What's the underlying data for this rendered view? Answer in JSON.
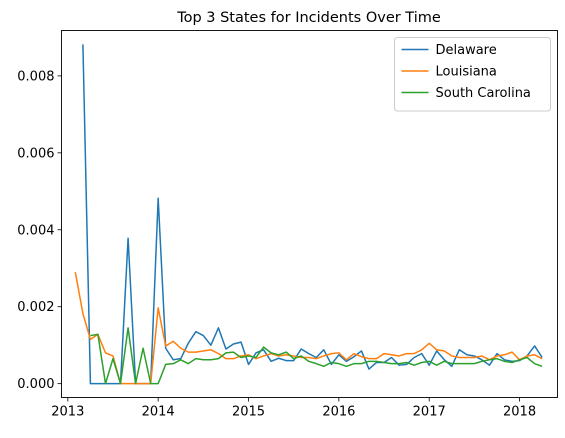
{
  "chart_data": {
    "type": "line",
    "title": "Top 3 States for Incidents Over Time",
    "xlabel": "",
    "ylabel": "",
    "x_unit": "year",
    "xlim": [
      2012.93,
      2018.42
    ],
    "ylim": [
      -0.00036,
      0.00918
    ],
    "xticks": [
      2013,
      2014,
      2015,
      2016,
      2017,
      2018
    ],
    "xtick_labels": [
      "2013",
      "2014",
      "2015",
      "2016",
      "2017",
      "2018"
    ],
    "yticks": [
      0.0,
      0.002,
      0.004,
      0.006,
      0.008
    ],
    "ytick_labels": [
      "0.000",
      "0.002",
      "0.004",
      "0.006",
      "0.008"
    ],
    "grid": false,
    "legend_position": "top-right",
    "x": [
      2013.083,
      2013.167,
      2013.25,
      2013.333,
      2013.417,
      2013.5,
      2013.583,
      2013.667,
      2013.75,
      2013.833,
      2013.917,
      2014.0,
      2014.083,
      2014.167,
      2014.25,
      2014.333,
      2014.417,
      2014.5,
      2014.583,
      2014.667,
      2014.75,
      2014.833,
      2014.917,
      2015.0,
      2015.083,
      2015.167,
      2015.25,
      2015.333,
      2015.417,
      2015.5,
      2015.583,
      2015.667,
      2015.75,
      2015.833,
      2015.917,
      2016.0,
      2016.083,
      2016.167,
      2016.25,
      2016.333,
      2016.417,
      2016.5,
      2016.583,
      2016.667,
      2016.75,
      2016.833,
      2016.917,
      2017.0,
      2017.083,
      2017.167,
      2017.25,
      2017.333,
      2017.417,
      2017.5,
      2017.583,
      2017.667,
      2017.75,
      2017.833,
      2017.917,
      2018.0,
      2018.083,
      2018.167,
      2018.25
    ],
    "series": [
      {
        "name": "Delaware",
        "color": "#1f77b4",
        "values": [
          null,
          0.00882,
          0.0,
          0.0,
          0.0,
          0.0,
          0.0,
          0.00378,
          0.0,
          0.0,
          0.0,
          0.00482,
          0.00092,
          0.00062,
          0.00065,
          0.00105,
          0.00135,
          0.00125,
          0.001,
          0.00145,
          0.0009,
          0.00103,
          0.00108,
          0.0005,
          0.0008,
          0.00088,
          0.00058,
          0.00066,
          0.0006,
          0.0006,
          0.0009,
          0.00078,
          0.00068,
          0.00088,
          0.0005,
          0.00075,
          0.00058,
          0.0007,
          0.00085,
          0.00038,
          0.00055,
          0.00055,
          0.00068,
          0.00048,
          0.0005,
          0.00068,
          0.00078,
          0.00048,
          0.00085,
          0.00062,
          0.00045,
          0.00088,
          0.00075,
          0.00072,
          0.00062,
          0.00048,
          0.00078,
          0.00062,
          0.00058,
          0.0006,
          0.00072,
          0.00098,
          0.00068
        ]
      },
      {
        "name": "Louisiana",
        "color": "#ff7f0e",
        "values": [
          0.0029,
          0.00182,
          0.00115,
          0.00128,
          0.0008,
          0.00072,
          0.0,
          0.0,
          0.0,
          0.0,
          0.0,
          0.00197,
          0.00098,
          0.0011,
          0.00092,
          0.00082,
          0.00082,
          0.00085,
          0.00088,
          0.00078,
          0.00065,
          0.00065,
          0.00072,
          0.00075,
          0.00065,
          0.00072,
          0.00078,
          0.00072,
          0.00075,
          0.00072,
          0.00068,
          0.00068,
          0.00065,
          0.00072,
          0.00078,
          0.0008,
          0.00062,
          0.00078,
          0.0007,
          0.00065,
          0.00065,
          0.00078,
          0.00075,
          0.00072,
          0.00078,
          0.00078,
          0.00088,
          0.00105,
          0.00088,
          0.00085,
          0.00072,
          0.00068,
          0.00068,
          0.00068,
          0.00072,
          0.00062,
          0.00072,
          0.00075,
          0.00082,
          0.00062,
          0.00072,
          0.00075,
          0.00065
        ]
      },
      {
        "name": "South Carolina",
        "color": "#2ca02c",
        "values": [
          null,
          null,
          0.00125,
          0.00128,
          0.0,
          0.00065,
          0.0,
          0.00145,
          0.0,
          0.00092,
          0.0,
          0.0,
          0.0005,
          0.00052,
          0.00062,
          0.00052,
          0.00065,
          0.00062,
          0.00062,
          0.00065,
          0.0008,
          0.00082,
          0.00068,
          0.00072,
          0.00068,
          0.00095,
          0.0008,
          0.00075,
          0.00082,
          0.00065,
          0.00072,
          0.00058,
          0.00052,
          0.00045,
          0.00055,
          0.00052,
          0.00045,
          0.00052,
          0.00052,
          0.00058,
          0.00058,
          0.00055,
          0.00052,
          0.00052,
          0.00055,
          0.00048,
          0.00055,
          0.00058,
          0.00048,
          0.00058,
          0.00052,
          0.00052,
          0.00052,
          0.00052,
          0.00058,
          0.00062,
          0.00065,
          0.00058,
          0.00055,
          0.00062,
          0.00068,
          0.00052,
          0.00045
        ]
      }
    ]
  }
}
